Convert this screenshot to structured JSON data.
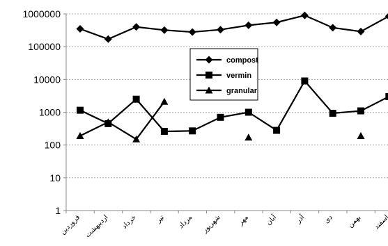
{
  "chart_data": {
    "type": "line",
    "yscale": "log",
    "ylim": [
      1,
      1000000
    ],
    "y_ticks": [
      1,
      10,
      100,
      1000,
      10000,
      100000,
      1000000
    ],
    "y_tick_labels": [
      "1",
      "10",
      "100",
      "1000",
      "10000",
      "100000",
      "1000000"
    ],
    "grid": "horizontal-dotted",
    "legend_position": "upper-center",
    "categories": [
      "فروردین",
      "اردیبهشت",
      "خرداد",
      "تیر",
      "مرداد",
      "شهریور",
      "مهر",
      "آبان",
      "آذر",
      "دی",
      "بهمن",
      "اسفند"
    ],
    "series": [
      {
        "name": "compost",
        "marker": "diamond",
        "color": "#000000",
        "values": [
          350000,
          170000,
          400000,
          320000,
          280000,
          330000,
          450000,
          550000,
          900000,
          380000,
          290000,
          850000
        ]
      },
      {
        "name": "vermin",
        "marker": "square",
        "color": "#000000",
        "values": [
          1150,
          450,
          2500,
          260,
          270,
          700,
          1000,
          280,
          9000,
          930,
          1100,
          3000
        ]
      },
      {
        "name": "granular",
        "marker": "triangle",
        "color": "#000000",
        "values": [
          190,
          500,
          150,
          2100,
          null,
          null,
          170,
          null,
          null,
          null,
          190,
          null
        ]
      }
    ]
  }
}
